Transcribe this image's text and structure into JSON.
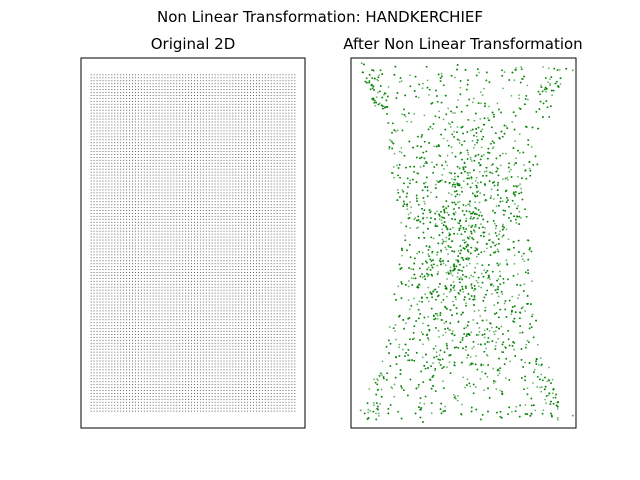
{
  "figure": {
    "suptitle": "Non Linear Transformation: HANDKERCHIEF"
  },
  "chart_data": [
    {
      "type": "scatter",
      "title": "Original 2D",
      "xlabel": "",
      "ylabel": "",
      "grid": false,
      "axis_ticks": false,
      "point_color": "#000000",
      "point_alpha": 0.6,
      "grid_shape": {
        "columns": 70,
        "rows": 115
      },
      "xlim": [
        -0.05,
        1.05
      ],
      "ylim": [
        -0.05,
        1.05
      ],
      "x_range": [
        0,
        1
      ],
      "y_range": [
        0,
        1
      ]
    },
    {
      "type": "scatter",
      "title": "After Non Linear Transformation",
      "xlabel": "",
      "ylabel": "",
      "grid": false,
      "axis_ticks": false,
      "point_color": "#008000",
      "point_alpha": 0.6,
      "point_count": 4000,
      "xlim": [
        -1.05,
        1.05
      ],
      "ylim": [
        -1.05,
        1.05
      ],
      "shape": "handkerchief"
    }
  ]
}
